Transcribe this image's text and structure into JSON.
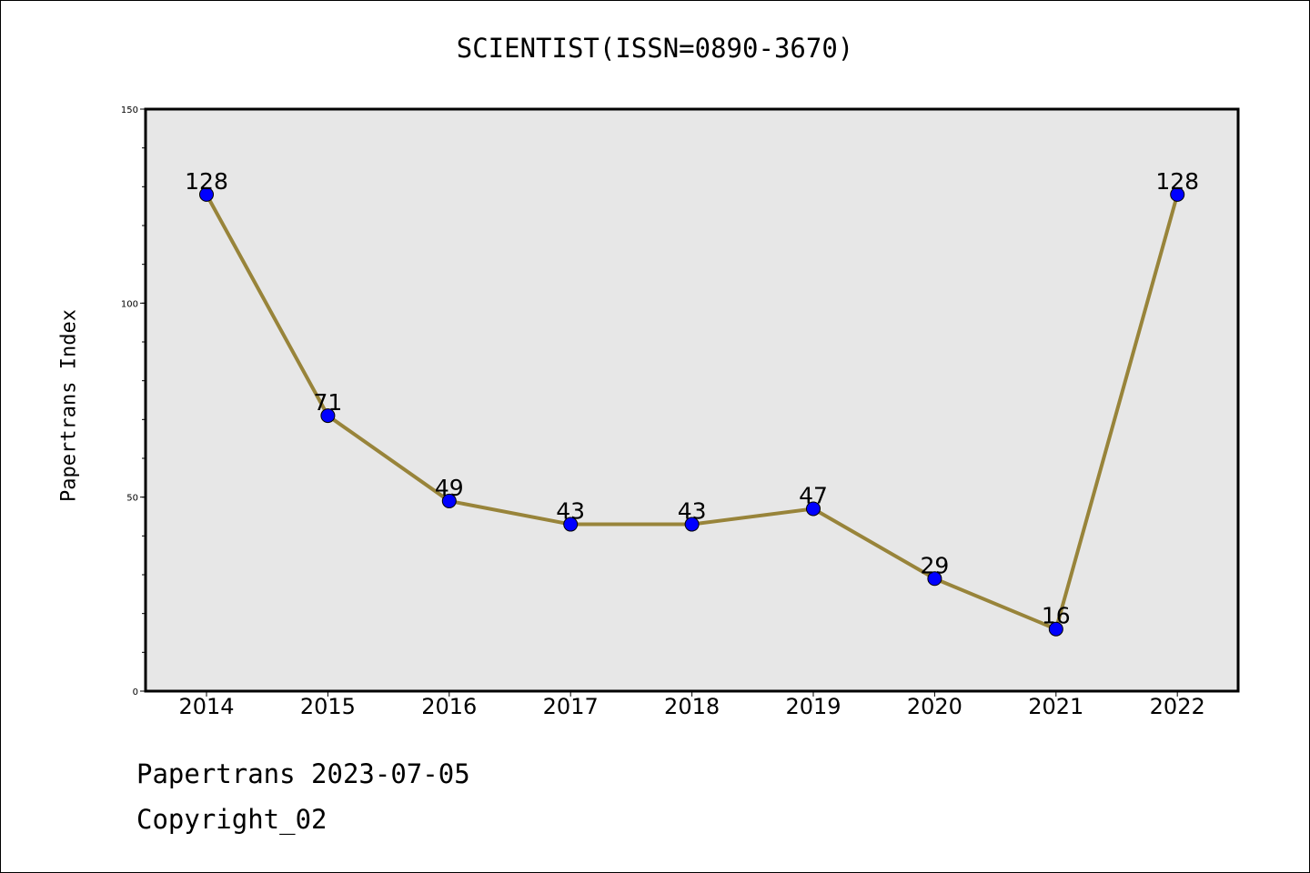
{
  "chart_data": {
    "type": "line",
    "title": "SCIENTIST(ISSN=0890-3670)",
    "xlabel": "",
    "ylabel": "Papertrans Index",
    "categories": [
      "2014",
      "2015",
      "2016",
      "2017",
      "2018",
      "2019",
      "2020",
      "2021",
      "2022"
    ],
    "series": [
      {
        "values": [
          128,
          71,
          49,
          43,
          43,
          47,
          29,
          16,
          128
        ],
        "data_labels": [
          "128",
          "71",
          "49",
          "43",
          "43",
          "47",
          "29",
          "16",
          "128"
        ]
      }
    ],
    "ylim": [
      0,
      150
    ],
    "y_ticks": [
      "0",
      "50",
      "100",
      "150"
    ],
    "grid": false,
    "legend": "none",
    "colors": {
      "line": "#98843a",
      "marker": "#0000ff",
      "plot_background": "#e7e7e7"
    }
  },
  "footer": {
    "source": "Papertrans 2023-07-05",
    "copyright": "Copyright_02"
  }
}
